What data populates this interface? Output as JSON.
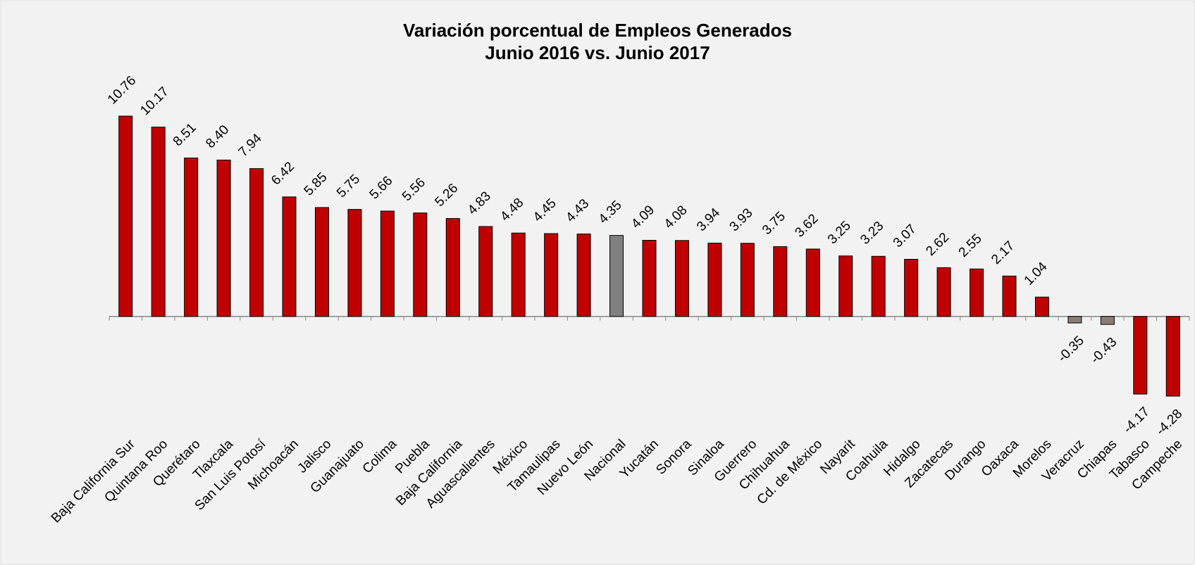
{
  "chart_data": {
    "type": "bar",
    "title": [
      "Variación porcentual de Empleos Generados",
      "Junio 2016 vs. Junio 2017"
    ],
    "categories": [
      "Baja California Sur",
      "Quintana Roo",
      "Querétaro",
      "Tlaxcala",
      "San Luis Potosí",
      "Michoacán",
      "Jalisco",
      "Guanajuato",
      "Colima",
      "Puebla",
      "Baja California",
      "Aguascalientes",
      "México",
      "Tamaulipas",
      "Nuevo León",
      "Nacional",
      "Yucatán",
      "Sonora",
      "Sinaloa",
      "Guerrero",
      "Chihuahua",
      "Cd. de México",
      "Nayarit",
      "Coahuila",
      "Hidalgo",
      "Zacatecas",
      "Durango",
      "Oaxaca",
      "Morelos",
      "Veracruz",
      "Chiapas",
      "Tabasco",
      "Campeche"
    ],
    "values": [
      10.76,
      10.17,
      8.51,
      8.4,
      7.94,
      6.42,
      5.85,
      5.75,
      5.66,
      5.56,
      5.26,
      4.83,
      4.48,
      4.45,
      4.43,
      4.35,
      4.09,
      4.08,
      3.94,
      3.93,
      3.75,
      3.62,
      3.25,
      3.23,
      3.07,
      2.62,
      2.55,
      2.17,
      1.04,
      -0.35,
      -0.43,
      -4.17,
      -4.28
    ],
    "value_labels": [
      "10.76",
      "10.17",
      "8.51",
      "8.40",
      "7.94",
      "6.42",
      "5.85",
      "5.75",
      "5.66",
      "5.56",
      "5.26",
      "4.83",
      "4.48",
      "4.45",
      "4.43",
      "4.35",
      "4.09",
      "4.08",
      "3.94",
      "3.93",
      "3.75",
      "3.62",
      "3.25",
      "3.23",
      "3.07",
      "2.62",
      "2.55",
      "2.17",
      "1.04",
      "-0.35",
      "-0.43",
      "-4.17",
      "-4.28"
    ],
    "colors": [
      "#c00000",
      "#c00000",
      "#c00000",
      "#c00000",
      "#c00000",
      "#c00000",
      "#c00000",
      "#c00000",
      "#c00000",
      "#c00000",
      "#c00000",
      "#c00000",
      "#c00000",
      "#c00000",
      "#c00000",
      "#808080",
      "#c00000",
      "#c00000",
      "#c00000",
      "#c00000",
      "#c00000",
      "#c00000",
      "#c00000",
      "#c00000",
      "#c00000",
      "#c00000",
      "#c00000",
      "#c00000",
      "#c00000",
      "#8a7d74",
      "#8a7d74",
      "#c00000",
      "#c00000"
    ]
  }
}
